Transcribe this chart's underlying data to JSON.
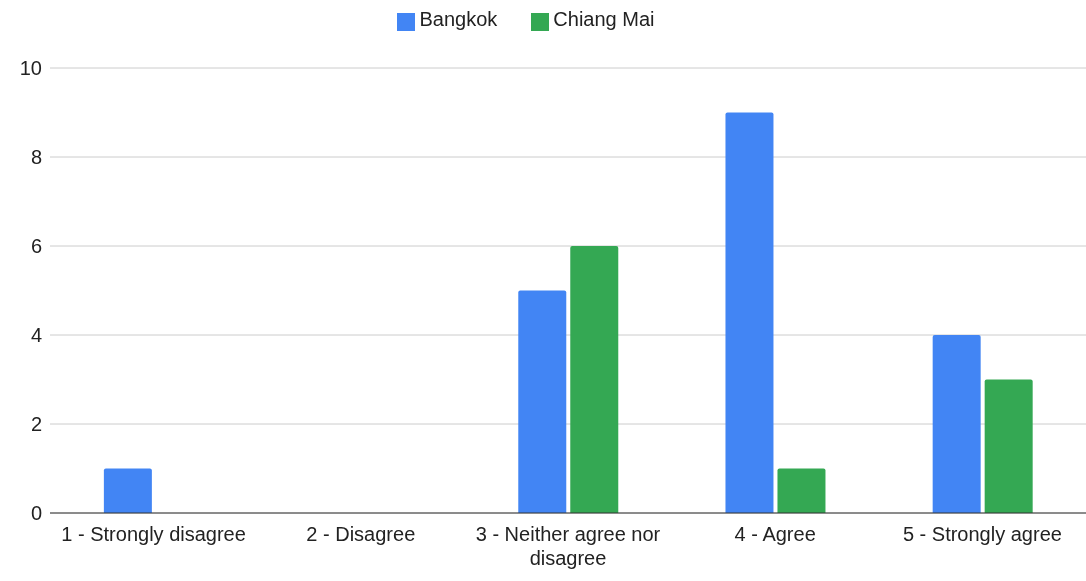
{
  "chart_data": {
    "type": "bar",
    "categories": [
      "1 - Strongly disagree",
      "2 - Disagree",
      "3 - Neither agree nor disagree",
      "4 - Agree",
      "5 - Strongly agree"
    ],
    "series": [
      {
        "name": "Bangkok",
        "color": "#4285f4",
        "values": [
          1,
          0,
          5,
          9,
          4
        ]
      },
      {
        "name": "Chiang Mai",
        "color": "#34a853",
        "values": [
          0,
          0,
          6,
          1,
          3
        ]
      }
    ],
    "ylim": [
      0,
      10
    ],
    "yticks": [
      0,
      2,
      4,
      6,
      8,
      10
    ],
    "grid": "y",
    "legend": "top"
  }
}
